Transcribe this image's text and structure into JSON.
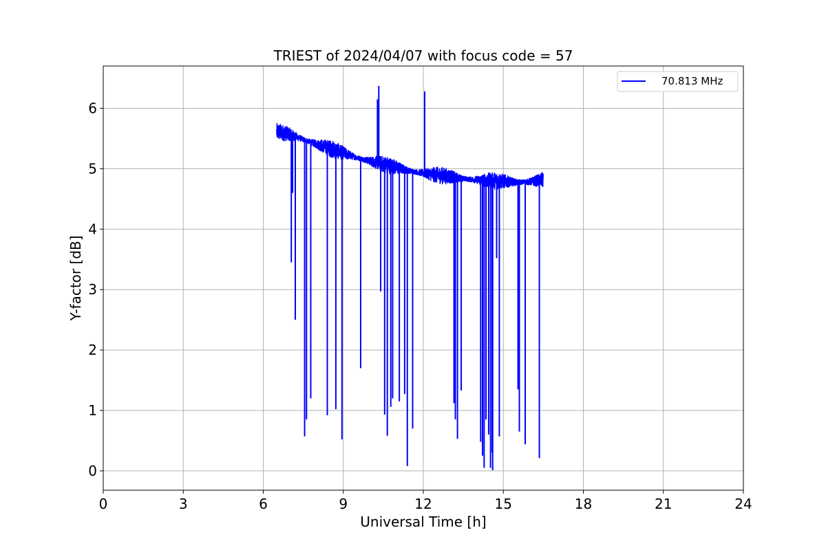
{
  "chart_data": {
    "type": "line",
    "title": "TRIEST of 2024/04/07 with focus code = 57",
    "xlabel": "Universal Time [h]",
    "ylabel": "Y-factor [dB]",
    "xlim": [
      0,
      24
    ],
    "ylim": [
      -0.32,
      6.7
    ],
    "xticks": [
      0,
      3,
      6,
      9,
      12,
      15,
      18,
      21,
      24
    ],
    "yticks": [
      0,
      1,
      2,
      3,
      4,
      5,
      6
    ],
    "grid": true,
    "legend_position": "top-right",
    "series": [
      {
        "name": "70.813 MHz",
        "color": "#0000ff",
        "baseline": {
          "x": [
            6.5,
            7.0,
            7.5,
            8.0,
            8.5,
            9.0,
            9.5,
            10.0,
            10.5,
            11.0,
            11.5,
            12.0,
            12.5,
            13.0,
            13.5,
            14.0,
            14.5,
            15.0,
            15.5,
            16.0,
            16.5
          ],
          "y": [
            5.6,
            5.56,
            5.48,
            5.4,
            5.32,
            5.25,
            5.18,
            5.12,
            5.06,
            5.01,
            4.96,
            4.92,
            4.88,
            4.86,
            4.83,
            4.81,
            4.79,
            4.78,
            4.77,
            4.78,
            4.8
          ]
        },
        "spikes": [
          {
            "x": 7.05,
            "y": 3.45
          },
          {
            "x": 7.1,
            "y": 4.6
          },
          {
            "x": 7.2,
            "y": 2.5
          },
          {
            "x": 7.55,
            "y": 0.57
          },
          {
            "x": 7.62,
            "y": 0.85
          },
          {
            "x": 7.78,
            "y": 1.2
          },
          {
            "x": 8.4,
            "y": 0.92
          },
          {
            "x": 8.72,
            "y": 1.02
          },
          {
            "x": 8.95,
            "y": 0.52
          },
          {
            "x": 9.65,
            "y": 1.7
          },
          {
            "x": 10.28,
            "y": 6.15
          },
          {
            "x": 10.33,
            "y": 6.37
          },
          {
            "x": 10.4,
            "y": 2.97
          },
          {
            "x": 10.55,
            "y": 0.93
          },
          {
            "x": 10.65,
            "y": 0.58
          },
          {
            "x": 10.78,
            "y": 1.06
          },
          {
            "x": 10.85,
            "y": 1.2
          },
          {
            "x": 11.1,
            "y": 1.15
          },
          {
            "x": 11.3,
            "y": 1.27
          },
          {
            "x": 11.4,
            "y": 0.08
          },
          {
            "x": 11.6,
            "y": 0.7
          },
          {
            "x": 12.05,
            "y": 6.28
          },
          {
            "x": 13.15,
            "y": 1.12
          },
          {
            "x": 13.2,
            "y": 0.85
          },
          {
            "x": 13.28,
            "y": 0.53
          },
          {
            "x": 13.42,
            "y": 1.33
          },
          {
            "x": 14.15,
            "y": 0.48
          },
          {
            "x": 14.22,
            "y": 0.25
          },
          {
            "x": 14.28,
            "y": 0.05
          },
          {
            "x": 14.35,
            "y": 0.85
          },
          {
            "x": 14.45,
            "y": 0.6
          },
          {
            "x": 14.52,
            "y": 0.05
          },
          {
            "x": 14.58,
            "y": 0.3
          },
          {
            "x": 14.6,
            "y": 0.01
          },
          {
            "x": 14.75,
            "y": 3.52
          },
          {
            "x": 14.85,
            "y": 0.57
          },
          {
            "x": 15.55,
            "y": 1.35
          },
          {
            "x": 15.6,
            "y": 0.65
          },
          {
            "x": 15.82,
            "y": 0.44
          },
          {
            "x": 16.35,
            "y": 0.21
          }
        ]
      }
    ]
  }
}
